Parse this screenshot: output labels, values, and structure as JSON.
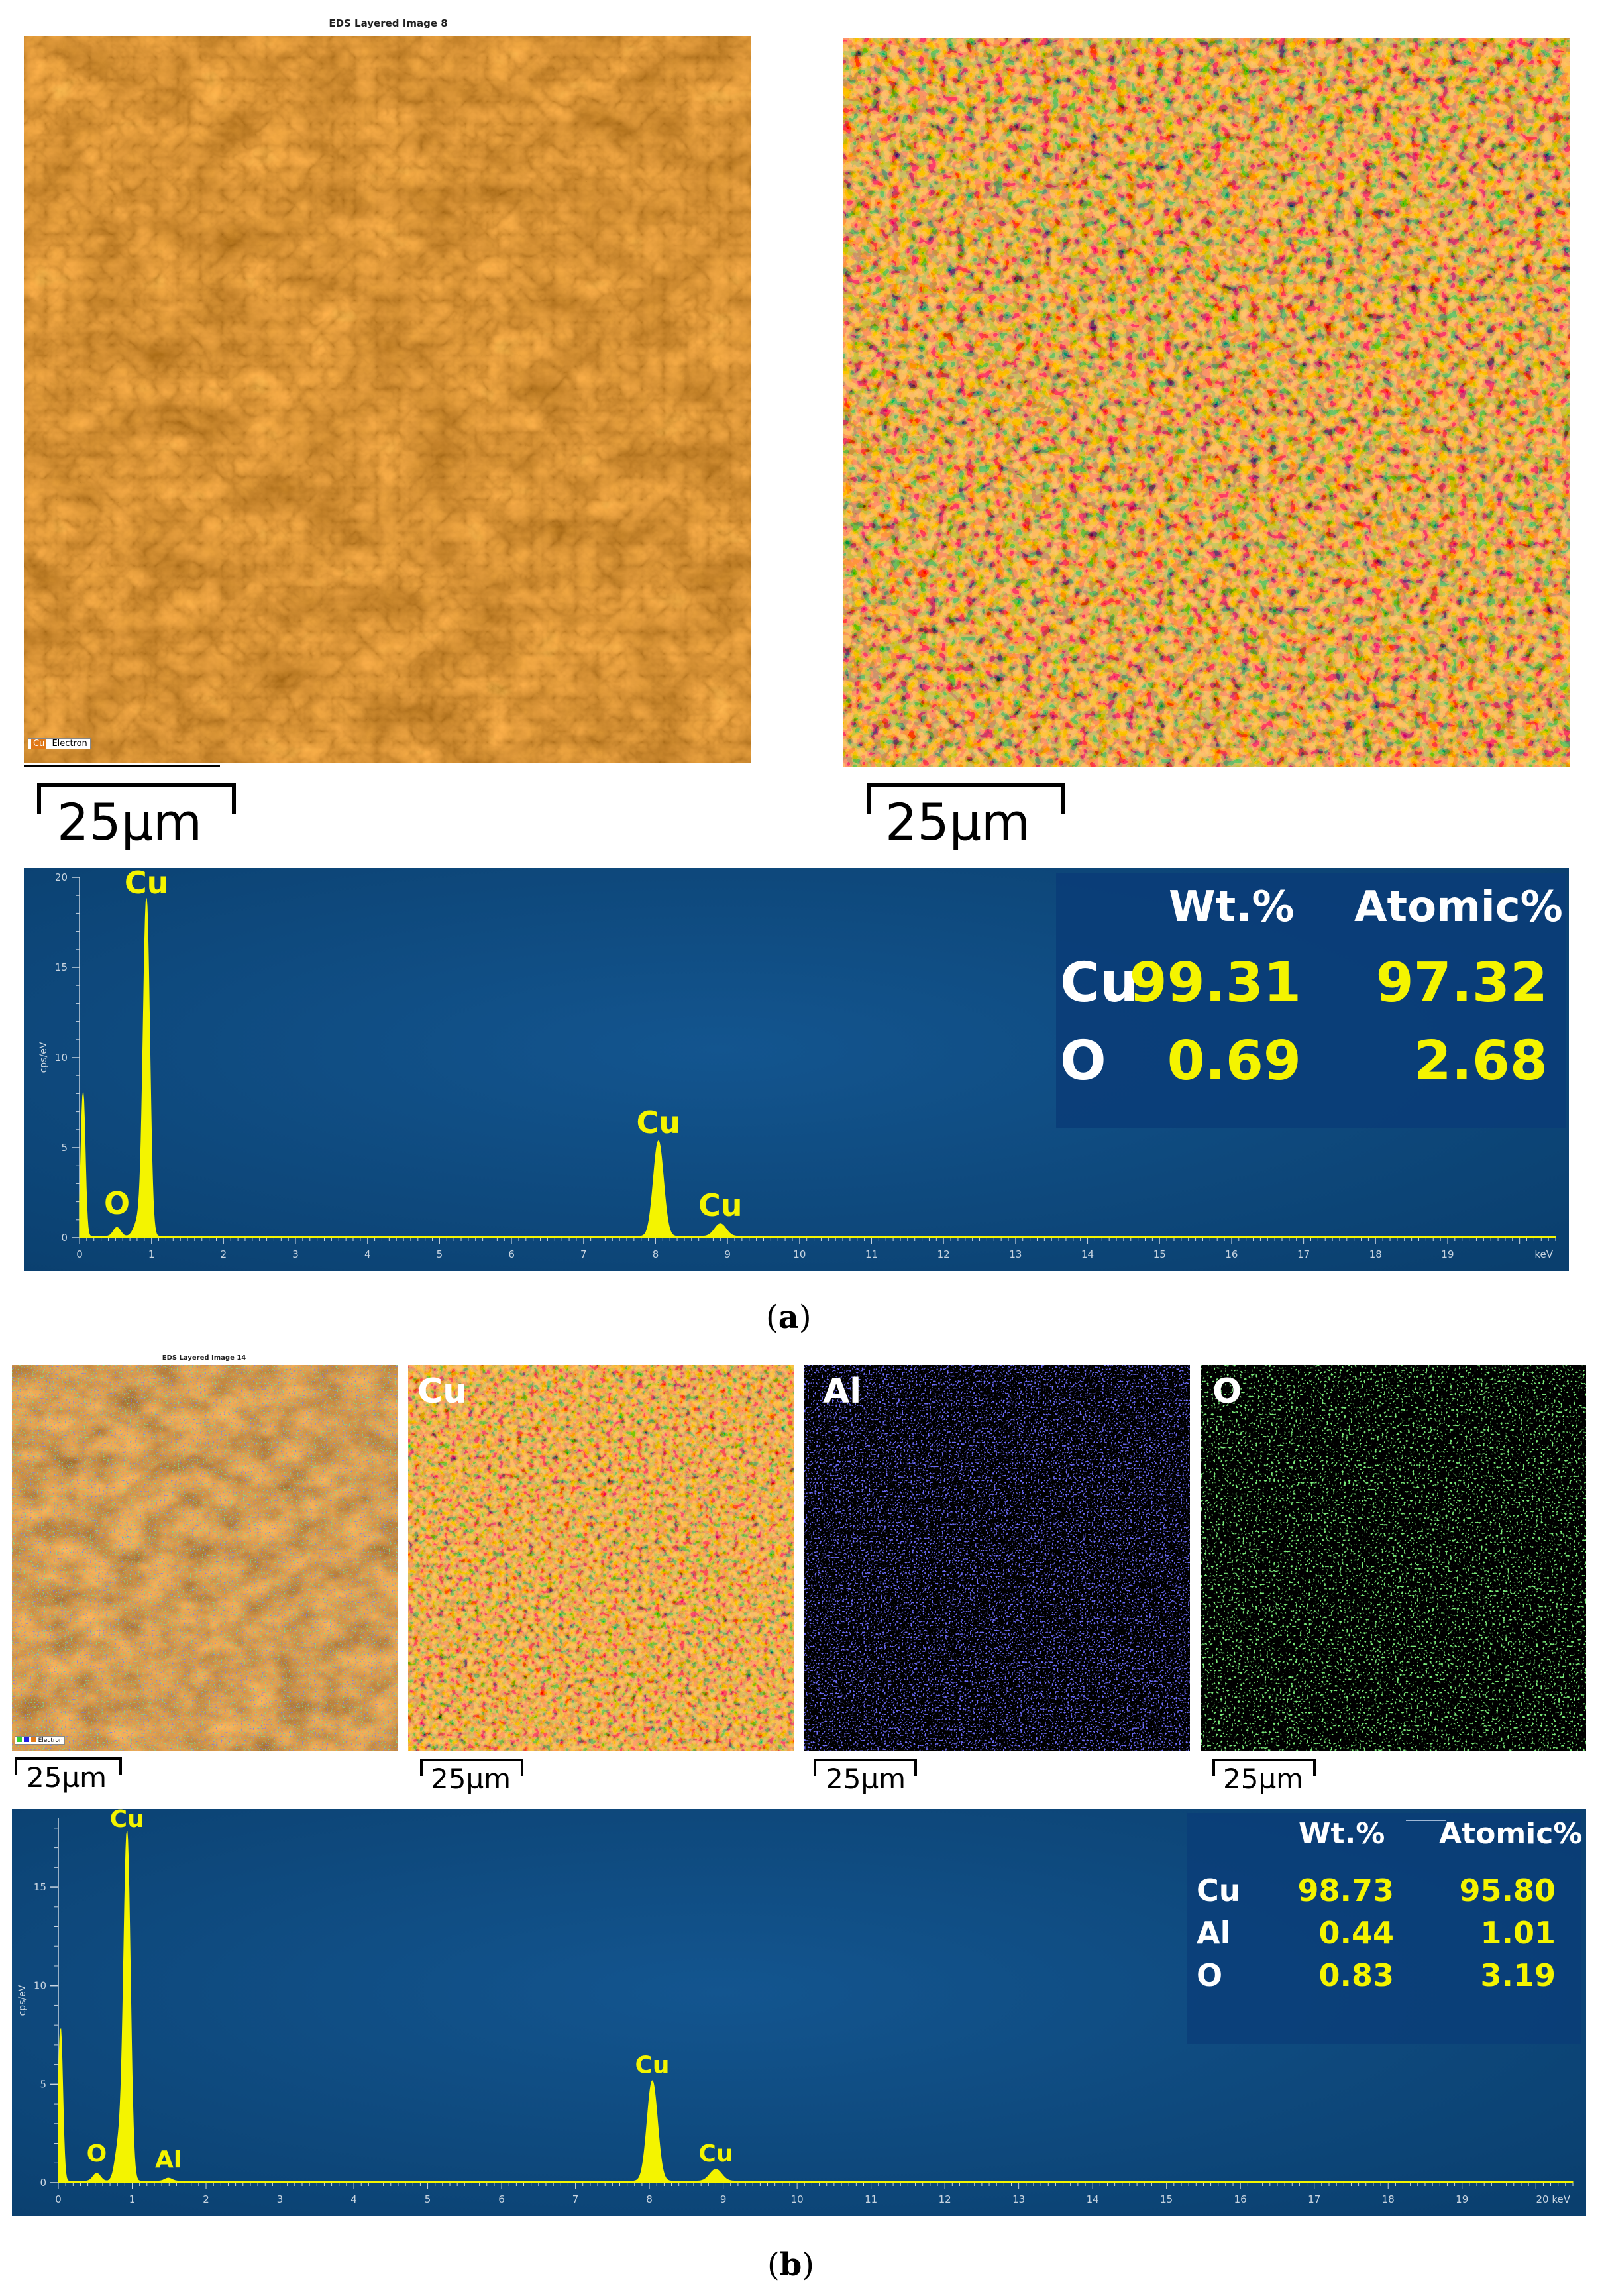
{
  "panel_a": {
    "caption_letter": "a",
    "layered_image": {
      "title": "EDS Layered Image 8",
      "legend": [
        "Cu",
        "Electron"
      ],
      "scale": "25µm"
    },
    "cu_map": {
      "scale": "25µm"
    },
    "table": {
      "headers": [
        "Wt.%",
        "Atomic%"
      ],
      "rows": [
        {
          "element": "Cu",
          "wt": "99.31",
          "atomic": "97.32"
        },
        {
          "element": "O",
          "wt": "0.69",
          "atomic": "2.68"
        }
      ]
    }
  },
  "panel_b": {
    "caption_letter": "b",
    "layered_image": {
      "title": "EDS Layered Image 14",
      "legend": [
        "Electron"
      ],
      "scale": "25µm"
    },
    "maps": [
      {
        "label": "Cu",
        "scale": "25µm",
        "color": "#e07818"
      },
      {
        "label": "Al",
        "scale": "25µm",
        "color": "#2020e0"
      },
      {
        "label": "O",
        "scale": "25µm",
        "color": "#30d030"
      }
    ],
    "table": {
      "headers": [
        "Wt.%",
        "Atomic%"
      ],
      "rows": [
        {
          "element": "Cu",
          "wt": "98.73",
          "atomic": "95.80"
        },
        {
          "element": "Al",
          "wt": "0.44",
          "atomic": "1.01"
        },
        {
          "element": "O",
          "wt": "0.83",
          "atomic": "3.19"
        }
      ]
    }
  },
  "chart_data": [
    {
      "type": "line",
      "ylabel": "cps/eV",
      "xunit": "keV",
      "xlim": [
        0,
        20.5
      ],
      "ylim": [
        0,
        20
      ],
      "x_ticks": [
        0,
        1,
        2,
        3,
        4,
        5,
        6,
        7,
        8,
        9,
        10,
        11,
        12,
        13,
        14,
        15,
        16,
        17,
        18,
        19
      ],
      "y_ticks": [
        0,
        5,
        10,
        15,
        20
      ],
      "background_color": "#0a3f6e",
      "line_color": "#f4f400",
      "peaks": [
        {
          "x": 0.05,
          "y": 8.0,
          "width": 0.03
        },
        {
          "x": 0.52,
          "y": 0.5,
          "width": 0.05
        },
        {
          "x": 0.93,
          "y": 18.6,
          "width": 0.045
        },
        {
          "x": 0.82,
          "y": 0.9,
          "width": 0.06
        },
        {
          "x": 8.04,
          "y": 5.3,
          "width": 0.07
        },
        {
          "x": 8.9,
          "y": 0.7,
          "width": 0.08
        }
      ],
      "annotations": [
        {
          "text": "Cu",
          "x": 0.93,
          "y": 18.6
        },
        {
          "text": "O",
          "x": 0.52,
          "y": 0.8
        },
        {
          "text": "Cu",
          "x": 8.04,
          "y": 5.3
        },
        {
          "text": "Cu",
          "x": 8.9,
          "y": 0.7
        }
      ]
    },
    {
      "type": "line",
      "ylabel": "cps/eV",
      "xunit": "keV",
      "x_last_label": "20 keV",
      "xlim": [
        0,
        20.5
      ],
      "ylim": [
        0,
        18.5
      ],
      "x_ticks": [
        0,
        1,
        2,
        3,
        4,
        5,
        6,
        7,
        8,
        9,
        10,
        11,
        12,
        13,
        14,
        15,
        16,
        17,
        18,
        19
      ],
      "y_ticks": [
        0,
        5,
        10,
        15
      ],
      "background_color": "#0a3f6e",
      "line_color": "#f4f400",
      "peaks": [
        {
          "x": 0.03,
          "y": 7.8,
          "width": 0.03
        },
        {
          "x": 0.52,
          "y": 0.4,
          "width": 0.05
        },
        {
          "x": 0.93,
          "y": 17.6,
          "width": 0.045
        },
        {
          "x": 0.82,
          "y": 1.9,
          "width": 0.05
        },
        {
          "x": 1.49,
          "y": 0.15,
          "width": 0.05
        },
        {
          "x": 8.04,
          "y": 5.1,
          "width": 0.07
        },
        {
          "x": 8.9,
          "y": 0.6,
          "width": 0.08
        }
      ],
      "annotations": [
        {
          "text": "Cu",
          "x": 0.93,
          "y": 17.6
        },
        {
          "text": "O",
          "x": 0.52,
          "y": 0.6
        },
        {
          "text": "Al",
          "x": 1.49,
          "y": 0.3
        },
        {
          "text": "Cu",
          "x": 8.04,
          "y": 5.1
        },
        {
          "text": "Cu",
          "x": 8.9,
          "y": 0.6
        }
      ]
    }
  ]
}
